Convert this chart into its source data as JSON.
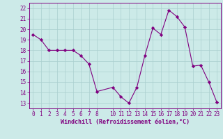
{
  "x": [
    0,
    1,
    2,
    3,
    4,
    5,
    6,
    7,
    8,
    10,
    11,
    12,
    13,
    14,
    15,
    16,
    17,
    18,
    19,
    20,
    21,
    22,
    23
  ],
  "y": [
    19.5,
    19.0,
    18.0,
    18.0,
    18.0,
    18.0,
    17.5,
    16.7,
    14.1,
    14.5,
    13.6,
    13.0,
    14.5,
    17.5,
    20.1,
    19.5,
    21.8,
    21.2,
    20.2,
    16.5,
    16.6,
    15.0,
    13.1
  ],
  "line_color": "#800080",
  "marker": "D",
  "marker_size": 2.2,
  "bg_color": "#cceae8",
  "grid_color": "#aacfcf",
  "ylabel_ticks": [
    13,
    14,
    15,
    16,
    17,
    18,
    19,
    20,
    21,
    22
  ],
  "xlabel_ticks": [
    0,
    1,
    2,
    3,
    4,
    5,
    6,
    7,
    8,
    10,
    11,
    12,
    13,
    14,
    15,
    16,
    17,
    18,
    19,
    20,
    21,
    22,
    23
  ],
  "xlabel": "Windchill (Refroidissement éolien,°C)",
  "ylim": [
    12.5,
    22.5
  ],
  "xlim": [
    -0.5,
    23.5
  ],
  "axis_color": "#800080",
  "tick_fontsize": 5.5,
  "xlabel_fontsize": 6.0
}
